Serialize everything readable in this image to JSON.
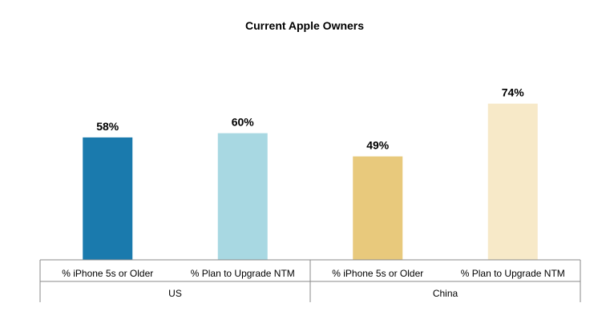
{
  "chart_data": {
    "type": "bar",
    "title": "Current Apple Owners",
    "groups": [
      {
        "name": "US",
        "bars": [
          {
            "category": "% iPhone 5s or Older",
            "value": 58,
            "label": "58%",
            "color": "#1a7aad"
          },
          {
            "category": "% Plan to Upgrade NTM",
            "value": 60,
            "label": "60%",
            "color": "#a8d8e2"
          }
        ]
      },
      {
        "name": "China",
        "bars": [
          {
            "category": "% iPhone 5s or Older",
            "value": 49,
            "label": "49%",
            "color": "#e8c97c"
          },
          {
            "category": "% Plan to Upgrade NTM",
            "value": 74,
            "label": "74%",
            "color": "#f7e9c8"
          }
        ]
      }
    ],
    "ylim": [
      0,
      100
    ],
    "grid": false,
    "legend": "none"
  }
}
